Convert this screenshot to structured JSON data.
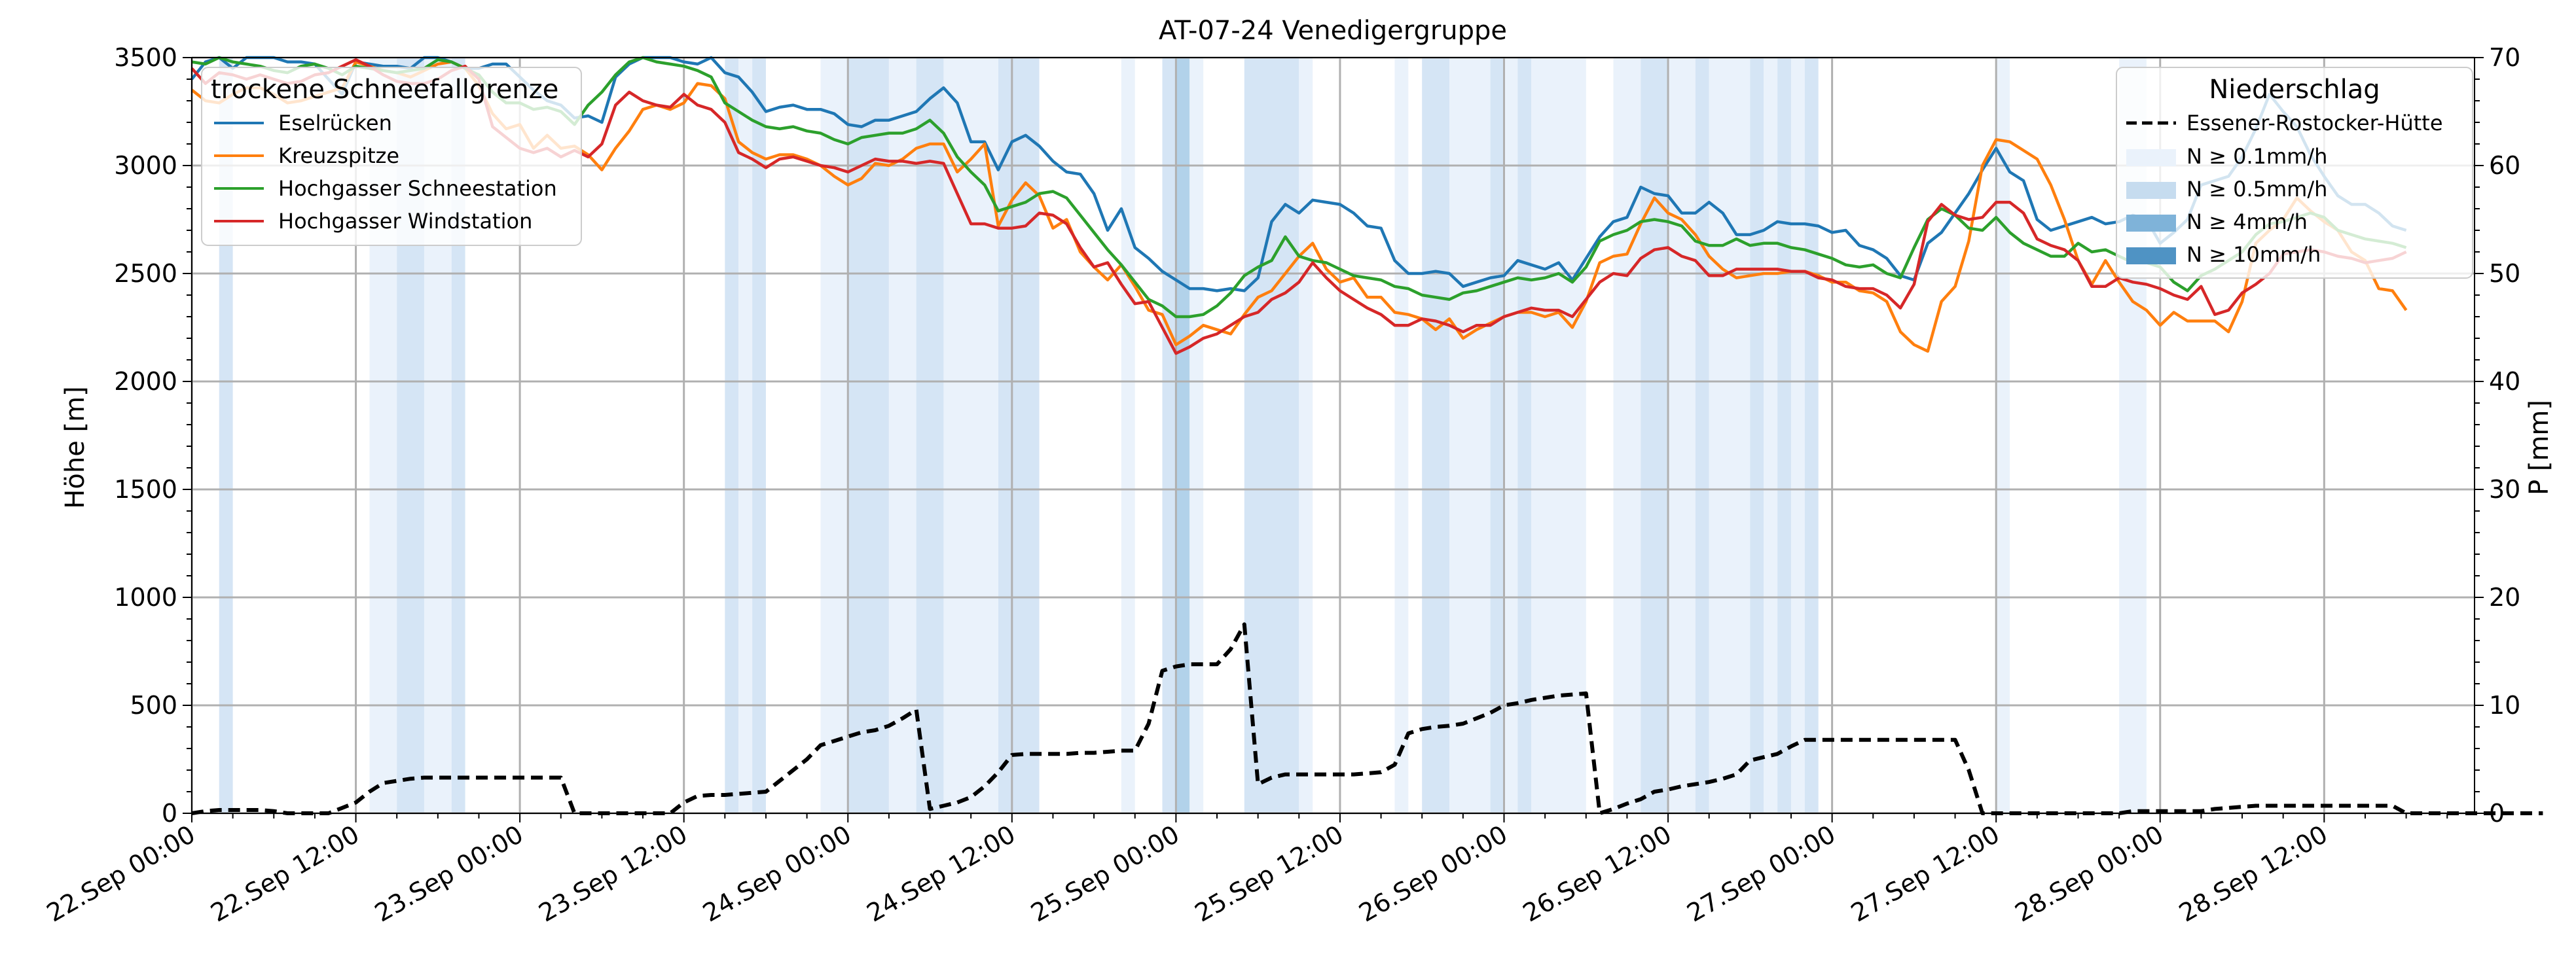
{
  "chart_data": {
    "type": "line",
    "title": "AT-07-24 Venedigergruppe",
    "ylabel_left": "Höhe [m]",
    "ylabel_right": "P [mm]",
    "ylim_left": [
      0,
      3500
    ],
    "ylim_right": [
      0,
      70
    ],
    "yticks_left": [
      0,
      500,
      1000,
      1500,
      2000,
      2500,
      3000,
      3500
    ],
    "yticks_right": [
      0,
      10,
      20,
      30,
      40,
      50,
      60,
      70
    ],
    "x_start": "2025-09-22T00:00",
    "x_end": "2025-09-28T23:00",
    "x_ticks": [
      "22.Sep 00:00",
      "22.Sep 12:00",
      "23.Sep 00:00",
      "23.Sep 12:00",
      "24.Sep 00:00",
      "24.Sep 12:00",
      "25.Sep 00:00",
      "25.Sep 12:00",
      "26.Sep 00:00",
      "26.Sep 12:00",
      "27.Sep 00:00",
      "27.Sep 12:00",
      "28.Sep 00:00",
      "28.Sep 12:00"
    ],
    "grid": true,
    "legend_left": {
      "title": "trockene Schneefallgrenze",
      "placement": "top-left"
    },
    "legend_right": {
      "title": "Niederschlag",
      "placement": "top-right",
      "entries": [
        "Essener-Rostocker-Hütte",
        "N ≥ 0.1mm/h",
        "N ≥ 0.5mm/h",
        "N ≥ 4mm/h",
        "N ≥ 10mm/h"
      ]
    },
    "band_colors": [
      "#eaf2fb",
      "#d5e5f5",
      "#b2d2ea",
      "#7fb3d9",
      "#4f93c4"
    ],
    "precip_bands": [
      {
        "start": 2,
        "end": 3,
        "level": 1
      },
      {
        "start": 13,
        "end": 15,
        "level": 0
      },
      {
        "start": 15,
        "end": 17,
        "level": 1
      },
      {
        "start": 17,
        "end": 19,
        "level": 0
      },
      {
        "start": 19,
        "end": 20,
        "level": 1
      },
      {
        "start": 39,
        "end": 40,
        "level": 1
      },
      {
        "start": 40,
        "end": 41,
        "level": 0
      },
      {
        "start": 41,
        "end": 42,
        "level": 1
      },
      {
        "start": 46,
        "end": 48,
        "level": 0
      },
      {
        "start": 48,
        "end": 51,
        "level": 1
      },
      {
        "start": 51,
        "end": 53,
        "level": 0
      },
      {
        "start": 53,
        "end": 55,
        "level": 1
      },
      {
        "start": 55,
        "end": 59,
        "level": 0
      },
      {
        "start": 59,
        "end": 62,
        "level": 1
      },
      {
        "start": 68,
        "end": 69,
        "level": 0
      },
      {
        "start": 71,
        "end": 72,
        "level": 1
      },
      {
        "start": 72,
        "end": 73,
        "level": 2
      },
      {
        "start": 73,
        "end": 74,
        "level": 0
      },
      {
        "start": 77,
        "end": 81,
        "level": 1
      },
      {
        "start": 81,
        "end": 82,
        "level": 0
      },
      {
        "start": 88,
        "end": 89,
        "level": 0
      },
      {
        "start": 90,
        "end": 92,
        "level": 1
      },
      {
        "start": 92,
        "end": 95,
        "level": 0
      },
      {
        "start": 95,
        "end": 96,
        "level": 1
      },
      {
        "start": 96,
        "end": 97,
        "level": 0
      },
      {
        "start": 97,
        "end": 98,
        "level": 1
      },
      {
        "start": 98,
        "end": 102,
        "level": 0
      },
      {
        "start": 104,
        "end": 106,
        "level": 0
      },
      {
        "start": 106,
        "end": 108,
        "level": 1
      },
      {
        "start": 108,
        "end": 110,
        "level": 0
      },
      {
        "start": 110,
        "end": 111,
        "level": 1
      },
      {
        "start": 111,
        "end": 114,
        "level": 0
      },
      {
        "start": 114,
        "end": 115,
        "level": 1
      },
      {
        "start": 115,
        "end": 116,
        "level": 0
      },
      {
        "start": 116,
        "end": 117,
        "level": 1
      },
      {
        "start": 117,
        "end": 118,
        "level": 0
      },
      {
        "start": 118,
        "end": 119,
        "level": 1
      },
      {
        "start": 132,
        "end": 133,
        "level": 0
      },
      {
        "start": 141,
        "end": 143,
        "level": 0
      }
    ],
    "series": [
      {
        "name": "Eselrücken",
        "color": "#1f77b4",
        "values": [
          3400,
          3480,
          3520,
          3450,
          3500,
          3520,
          3510,
          3480,
          3480,
          3470,
          3400,
          3330,
          3480,
          3470,
          3460,
          3460,
          3450,
          3520,
          3510,
          3480,
          3450,
          3450,
          3470,
          3470,
          3410,
          3350,
          3300,
          3280,
          3220,
          3230,
          3200,
          3410,
          3470,
          3520,
          3530,
          3510,
          3480,
          3470,
          3520,
          3430,
          3410,
          3340,
          3250,
          3270,
          3280,
          3260,
          3260,
          3240,
          3190,
          3180,
          3210,
          3210,
          3230,
          3250,
          3310,
          3360,
          3290,
          3110,
          3110,
          2980,
          3110,
          3140,
          3090,
          3020,
          2970,
          2960,
          2870,
          2700,
          2800,
          2620,
          2570,
          2510,
          2470,
          2430,
          2430,
          2420,
          2430,
          2420,
          2480,
          2740,
          2820,
          2780,
          2840,
          2830,
          2820,
          2780,
          2720,
          2710,
          2560,
          2500,
          2500,
          2510,
          2500,
          2440,
          2460,
          2480,
          2490,
          2560,
          2540,
          2520,
          2550,
          2470,
          2570,
          2670,
          2740,
          2760,
          2900,
          2870,
          2860,
          2780,
          2780,
          2830,
          2780,
          2680,
          2680,
          2700,
          2740,
          2730,
          2730,
          2720,
          2690,
          2700,
          2630,
          2610,
          2570,
          2490,
          2470,
          2640,
          2690,
          2780,
          2870,
          2980,
          3080,
          2970,
          2930,
          2750,
          2700,
          2720,
          2740,
          2760,
          2730,
          2740,
          2770,
          2750,
          2640,
          2690,
          2750,
          2910,
          2930,
          2950,
          3040,
          3170,
          3330,
          3250,
          3180,
          3050,
          2950,
          2860,
          2820,
          2820,
          2780,
          2720,
          2700
        ]
      },
      {
        "name": "Kreuzspitze",
        "color": "#ff7f0e",
        "values": [
          3350,
          3300,
          3290,
          3330,
          3360,
          3360,
          3330,
          3290,
          3300,
          3320,
          3340,
          3360,
          3480,
          3460,
          3440,
          3430,
          3410,
          3440,
          3470,
          3480,
          3450,
          3370,
          3240,
          3170,
          3190,
          3080,
          3140,
          3080,
          3090,
          3050,
          2980,
          3080,
          3160,
          3260,
          3280,
          3260,
          3290,
          3380,
          3370,
          3310,
          3110,
          3060,
          3030,
          3050,
          3050,
          3030,
          3000,
          2950,
          2910,
          2940,
          3010,
          3000,
          3030,
          3080,
          3100,
          3100,
          2970,
          3030,
          3100,
          2720,
          2840,
          2920,
          2860,
          2710,
          2750,
          2600,
          2530,
          2470,
          2540,
          2440,
          2330,
          2310,
          2170,
          2210,
          2260,
          2240,
          2220,
          2310,
          2390,
          2420,
          2500,
          2580,
          2640,
          2520,
          2460,
          2480,
          2390,
          2390,
          2320,
          2310,
          2290,
          2240,
          2290,
          2200,
          2240,
          2270,
          2300,
          2320,
          2320,
          2300,
          2320,
          2250,
          2370,
          2550,
          2580,
          2590,
          2730,
          2850,
          2780,
          2750,
          2680,
          2580,
          2520,
          2480,
          2490,
          2500,
          2500,
          2510,
          2510,
          2490,
          2460,
          2460,
          2420,
          2410,
          2370,
          2230,
          2170,
          2140,
          2370,
          2440,
          2650,
          3000,
          3120,
          3110,
          3070,
          3030,
          2910,
          2750,
          2560,
          2450,
          2560,
          2460,
          2370,
          2330,
          2260,
          2320,
          2280,
          2280,
          2280,
          2230,
          2370,
          2640,
          2700,
          2750,
          2850,
          2790,
          2740,
          2700,
          2600,
          2560,
          2430,
          2420,
          2330
        ]
      },
      {
        "name": "Hochgasser Schneestation",
        "color": "#2ca02c",
        "values": [
          3480,
          3470,
          3500,
          3480,
          3470,
          3460,
          3440,
          3430,
          3460,
          3470,
          3450,
          3420,
          3460,
          3450,
          3440,
          3430,
          3440,
          3450,
          3490,
          3480,
          3450,
          3420,
          3340,
          3290,
          3290,
          3260,
          3270,
          3250,
          3190,
          3280,
          3340,
          3420,
          3480,
          3540,
          3480,
          3470,
          3460,
          3440,
          3410,
          3290,
          3250,
          3210,
          3180,
          3170,
          3180,
          3160,
          3150,
          3120,
          3100,
          3130,
          3140,
          3150,
          3150,
          3170,
          3210,
          3150,
          3040,
          2970,
          2910,
          2790,
          2810,
          2830,
          2870,
          2880,
          2850,
          2770,
          2690,
          2610,
          2540,
          2460,
          2380,
          2350,
          2300,
          2300,
          2310,
          2350,
          2410,
          2490,
          2530,
          2560,
          2670,
          2580,
          2560,
          2550,
          2520,
          2490,
          2480,
          2470,
          2440,
          2430,
          2400,
          2390,
          2380,
          2410,
          2420,
          2440,
          2460,
          2480,
          2470,
          2480,
          2500,
          2460,
          2530,
          2650,
          2680,
          2700,
          2740,
          2750,
          2740,
          2720,
          2650,
          2630,
          2630,
          2660,
          2630,
          2640,
          2640,
          2620,
          2610,
          2590,
          2570,
          2540,
          2530,
          2540,
          2500,
          2480,
          2620,
          2750,
          2800,
          2770,
          2710,
          2700,
          2760,
          2690,
          2640,
          2610,
          2580,
          2580,
          2640,
          2600,
          2610,
          2580,
          2550,
          2550,
          2530,
          2460,
          2420,
          2490,
          2520,
          2560,
          2600,
          2680,
          2730,
          2740,
          2760,
          2780,
          2760,
          2700,
          2680,
          2660,
          2650,
          2640,
          2620
        ]
      },
      {
        "name": "Hochgasser Windstation",
        "color": "#d62728",
        "values": [
          3450,
          3380,
          3430,
          3420,
          3400,
          3420,
          3400,
          3380,
          3390,
          3420,
          3430,
          3460,
          3490,
          3460,
          3420,
          3390,
          3380,
          3380,
          3400,
          3440,
          3460,
          3400,
          3180,
          3130,
          3080,
          3060,
          3080,
          3040,
          3070,
          3040,
          3100,
          3280,
          3340,
          3300,
          3280,
          3270,
          3330,
          3280,
          3260,
          3200,
          3060,
          3030,
          2990,
          3030,
          3040,
          3020,
          3000,
          2990,
          2970,
          3000,
          3030,
          3020,
          3020,
          3010,
          3020,
          3010,
          2870,
          2730,
          2730,
          2710,
          2710,
          2720,
          2780,
          2770,
          2730,
          2620,
          2530,
          2550,
          2450,
          2360,
          2370,
          2250,
          2130,
          2160,
          2200,
          2220,
          2260,
          2300,
          2320,
          2380,
          2410,
          2460,
          2550,
          2480,
          2420,
          2380,
          2340,
          2310,
          2260,
          2260,
          2290,
          2280,
          2260,
          2230,
          2260,
          2260,
          2300,
          2320,
          2340,
          2330,
          2330,
          2300,
          2380,
          2460,
          2500,
          2490,
          2570,
          2610,
          2620,
          2580,
          2560,
          2490,
          2490,
          2520,
          2520,
          2520,
          2520,
          2510,
          2510,
          2480,
          2470,
          2440,
          2430,
          2430,
          2400,
          2340,
          2450,
          2740,
          2820,
          2770,
          2750,
          2760,
          2830,
          2830,
          2780,
          2660,
          2630,
          2610,
          2560,
          2440,
          2440,
          2480,
          2460,
          2450,
          2430,
          2400,
          2380,
          2440,
          2310,
          2330,
          2410,
          2450,
          2500,
          2590,
          2600,
          2610,
          2600,
          2580,
          2570,
          2550,
          2560,
          2570,
          2600
        ]
      },
      {
        "name": "Essener-Rostocker-Hütte",
        "color": "#000000",
        "dashed": true,
        "axis": "right",
        "values": [
          0,
          0.2,
          0.3,
          0.3,
          0.3,
          0.3,
          0.2,
          0,
          0,
          0,
          0,
          0.5,
          1,
          2,
          2.8,
          3,
          3.2,
          3.3,
          3.3,
          3.3,
          3.3,
          3.3,
          3.3,
          3.3,
          3.3,
          3.3,
          3.3,
          3.3,
          0,
          0,
          0,
          0,
          0,
          0,
          0,
          0,
          1,
          1.6,
          1.7,
          1.7,
          1.8,
          1.9,
          2,
          3,
          4,
          5,
          6.3,
          6.7,
          7.1,
          7.5,
          7.7,
          8.1,
          8.8,
          9.6,
          0.4,
          0.7,
          1,
          1.5,
          2.5,
          3.8,
          5.4,
          5.5,
          5.5,
          5.5,
          5.5,
          5.6,
          5.6,
          5.7,
          5.8,
          5.8,
          8.3,
          13.2,
          13.6,
          13.8,
          13.8,
          13.8,
          15.2,
          17.5,
          2.7,
          3.3,
          3.6,
          3.6,
          3.6,
          3.6,
          3.6,
          3.6,
          3.7,
          3.8,
          4.5,
          7.4,
          7.8,
          8,
          8.1,
          8.3,
          8.8,
          9.3,
          10,
          10.2,
          10.5,
          10.7,
          10.9,
          11,
          11.1,
          0,
          0.4,
          0.9,
          1.3,
          2,
          2.2,
          2.5,
          2.7,
          2.9,
          3.2,
          3.6,
          4.9,
          5.2,
          5.5,
          6.2,
          6.8,
          6.8,
          6.8,
          6.8,
          6.8,
          6.8,
          6.8,
          6.8,
          6.8,
          6.8,
          6.8,
          6.8,
          4,
          0,
          0,
          0,
          0,
          0,
          0,
          0,
          0,
          0,
          0,
          0,
          0.2,
          0.2,
          0.2,
          0.2,
          0.2,
          0.2,
          0.4,
          0.5,
          0.6,
          0.7,
          0.7,
          0.7,
          0.7,
          0.7,
          0.7,
          0.7,
          0.7,
          0.7,
          0.7,
          0.7,
          0,
          0,
          0,
          0,
          0,
          0,
          0,
          0,
          0,
          0,
          0
        ]
      }
    ]
  }
}
